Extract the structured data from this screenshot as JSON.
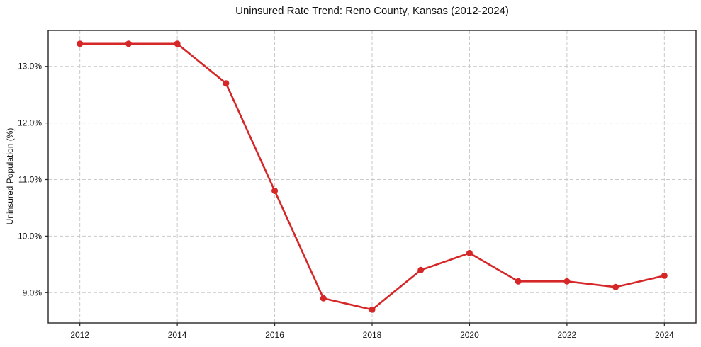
{
  "page": {
    "background_color": "#ffffff",
    "text_color": "#111111"
  },
  "chart_data": {
    "type": "line",
    "title": "Uninsured Rate Trend: Reno County, Kansas (2012-2024)",
    "xlabel": "",
    "ylabel": "Uninsured Population (%)",
    "x": [
      2012,
      2013,
      2014,
      2015,
      2016,
      2017,
      2018,
      2019,
      2020,
      2021,
      2022,
      2023,
      2024
    ],
    "series": [
      {
        "color": "#d62728",
        "values": [
          13.4,
          13.4,
          13.4,
          12.7,
          10.8,
          8.9,
          8.7,
          9.4,
          9.7,
          9.2,
          9.2,
          9.1,
          9.3
        ]
      }
    ],
    "xlim": [
      2011.35,
      2024.65
    ],
    "ylim": [
      8.465,
      13.635
    ],
    "xticks": {
      "values": [
        2012,
        2014,
        2016,
        2018,
        2020,
        2022,
        2024
      ],
      "labels": [
        "2012",
        "2014",
        "2016",
        "2018",
        "2020",
        "2022",
        "2024"
      ]
    },
    "yticks": {
      "values": [
        9.0,
        10.0,
        11.0,
        12.0,
        13.0
      ],
      "labels": [
        "9.0%",
        "10.0%",
        "11.0%",
        "12.0%",
        "13.0%"
      ]
    },
    "grid": true,
    "grid_color": "#c9c9c9",
    "grid_dash": "5 3",
    "spine_color": "#262626",
    "line_width": 2.6,
    "marker_radius": 4.5,
    "legend": "none"
  }
}
